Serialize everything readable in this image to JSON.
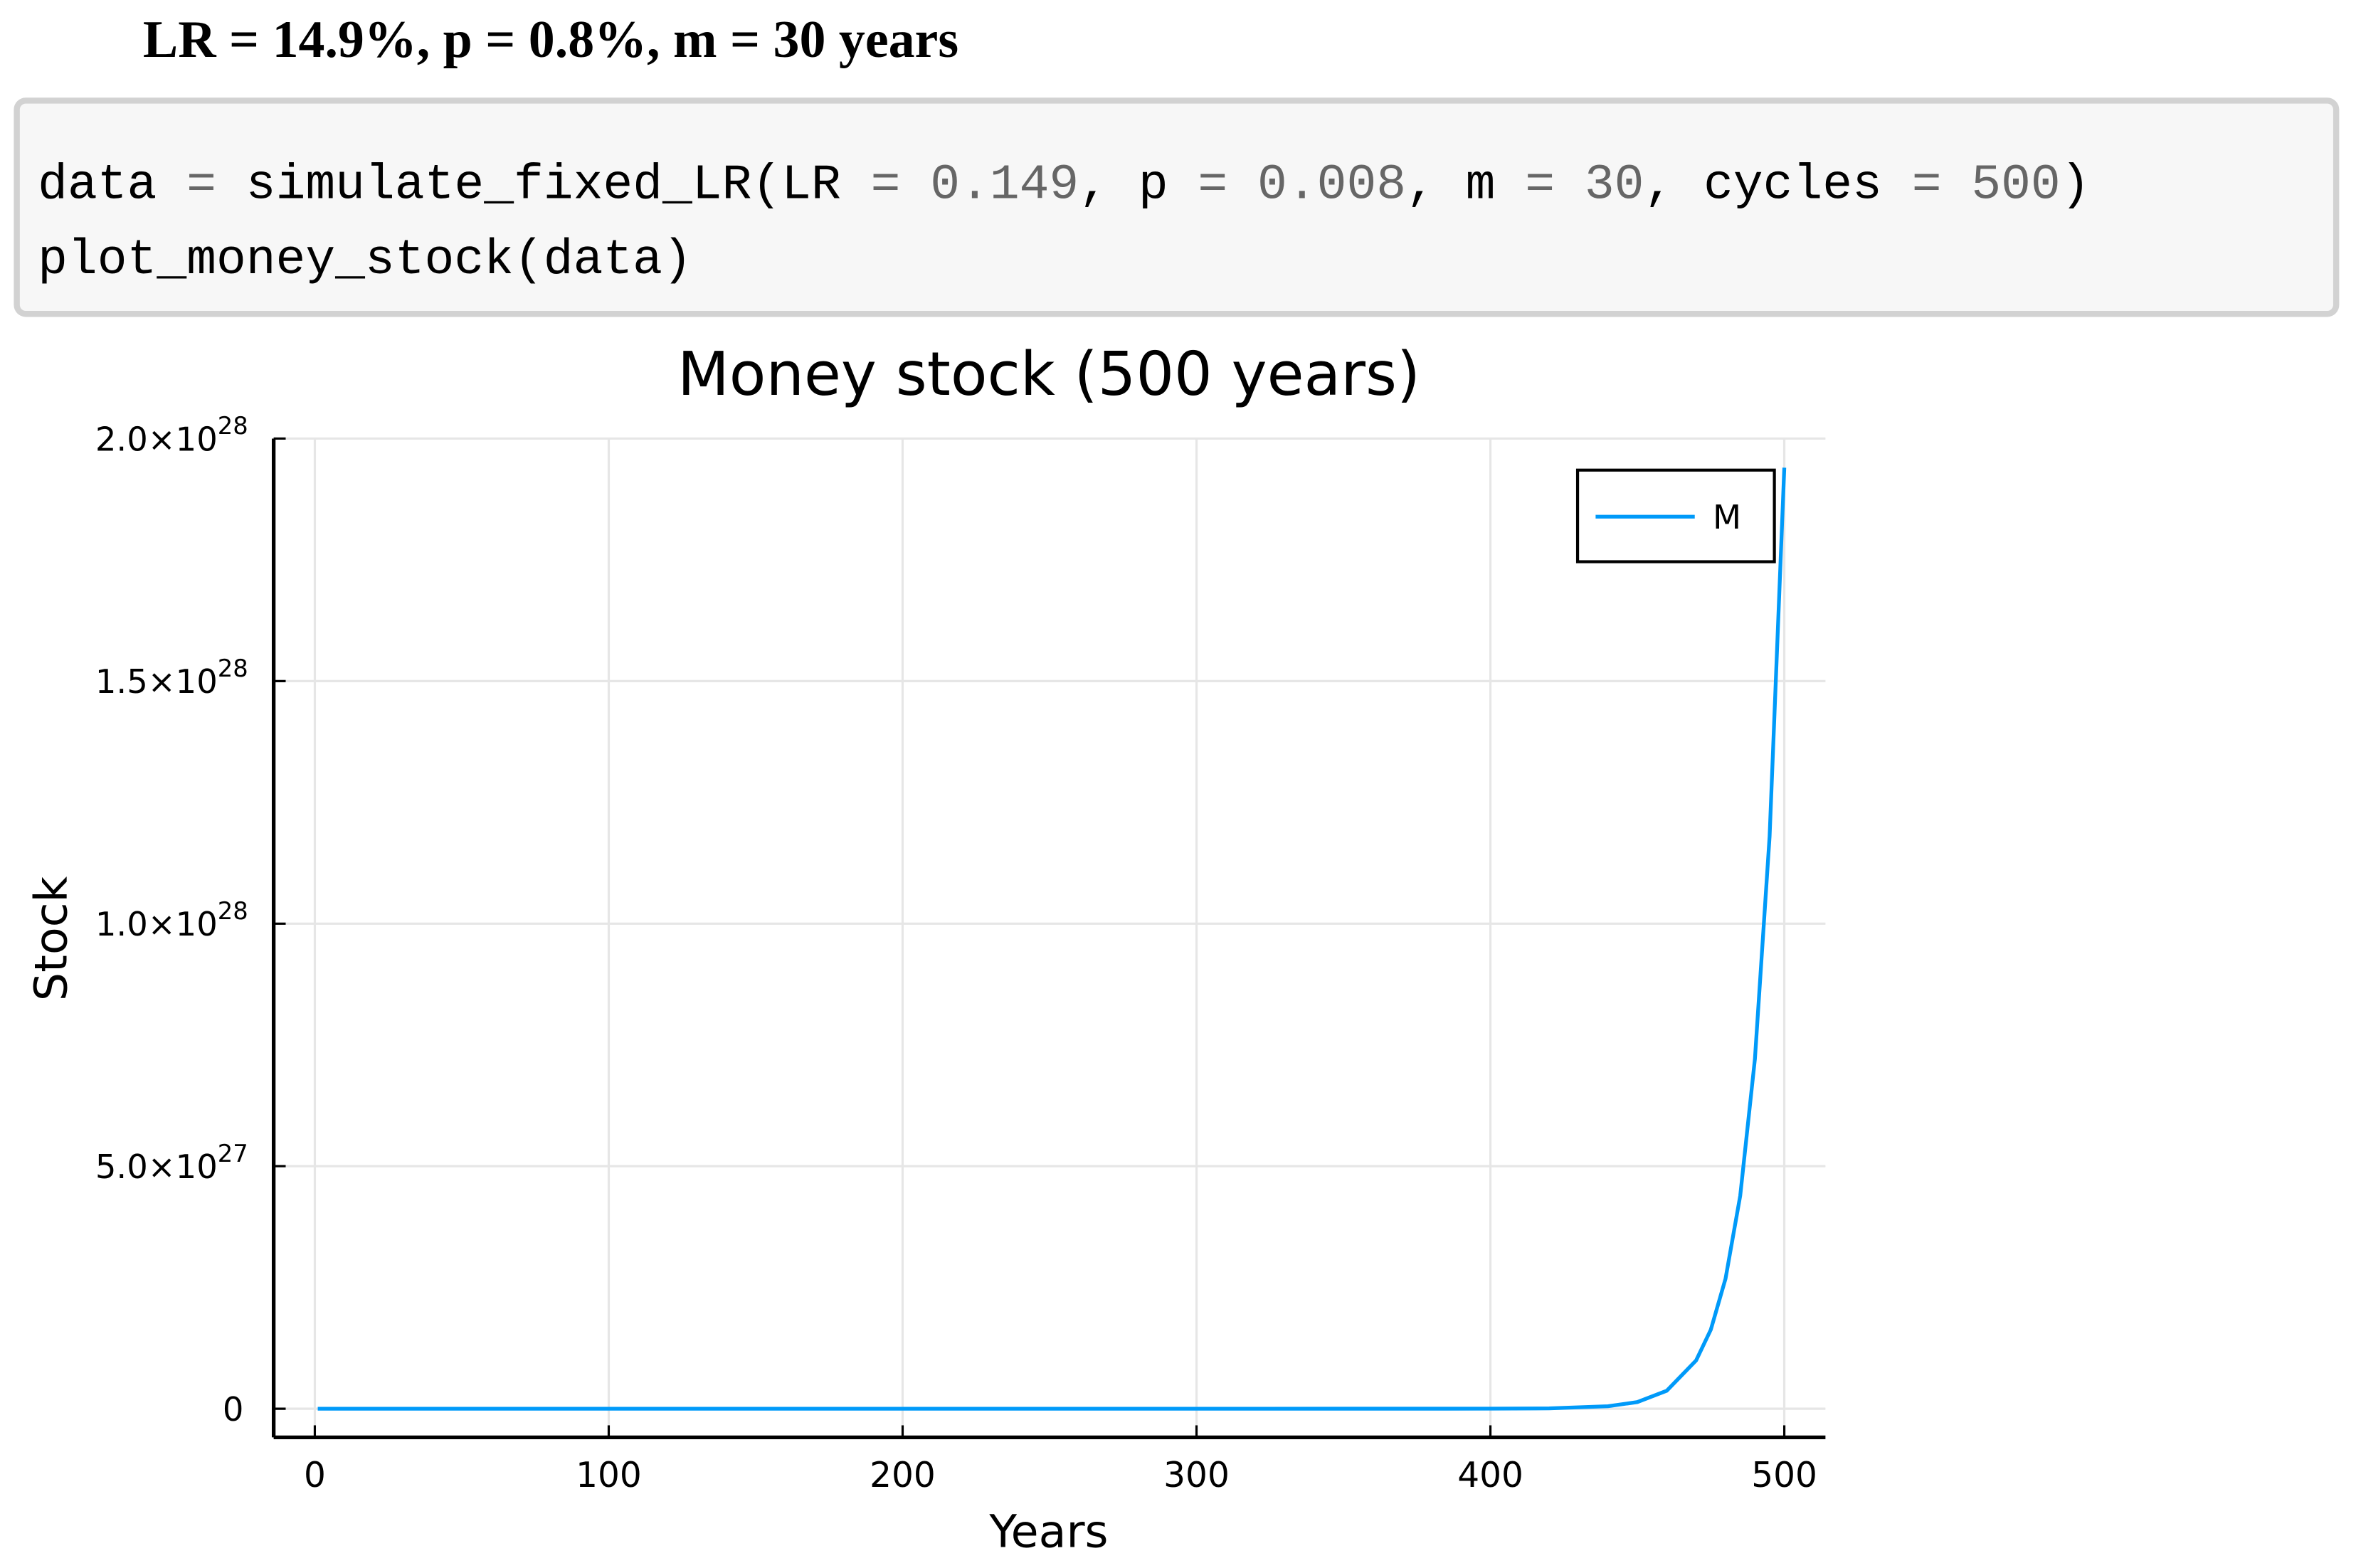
{
  "header": {
    "title": "LR = 14.9%, p = 0.8%, m = 30 years"
  },
  "code": {
    "lines": [
      [
        "data ",
        "=",
        " simulate_fixed_LR(LR ",
        "=",
        " 0.149",
        ", p ",
        "=",
        " 0.008",
        ", m ",
        "=",
        " 30",
        ", cycles ",
        "=",
        " 500",
        ")"
      ],
      [
        "plot_money_stock(data)"
      ]
    ]
  },
  "chart_data": {
    "type": "line",
    "title": "Money stock (500 years)",
    "x_label": "Years",
    "y_label": "Stock",
    "x": [
      1,
      100,
      200,
      300,
      400,
      420,
      440,
      450,
      460,
      470,
      475,
      480,
      485,
      490,
      495,
      500
    ],
    "series": [
      {
        "name": "M",
        "color": "#009af9",
        "values": [
          6800000.0,
          120000000000.0,
          2400000000000000.0,
          4.8e+19,
          9.7e+23,
          7.1e+24,
          5.1e+25,
          1.37e+26,
          3.7e+26,
          9.96e+26,
          1.63e+27,
          2.68e+27,
          4.39e+27,
          7.21e+27,
          1.18e+28,
          1.94e+28
        ]
      }
    ],
    "xlim": [
      -14,
      514
    ],
    "xticks": [
      0,
      100,
      200,
      300,
      400,
      500
    ],
    "ylim": [
      -5.9e+26,
      2e+28
    ],
    "yticks": [
      0,
      {
        "value": 5e+27,
        "label": "5.0×10",
        "exponent": "27"
      },
      {
        "value": 1e+28,
        "label": "1.0×10",
        "exponent": "28"
      },
      {
        "value": 1.5e+28,
        "label": "1.5×10",
        "exponent": "28"
      },
      {
        "value": 2e+28,
        "label": "2.0×10",
        "exponent": "28"
      }
    ],
    "grid": true,
    "legend": "top-right"
  }
}
